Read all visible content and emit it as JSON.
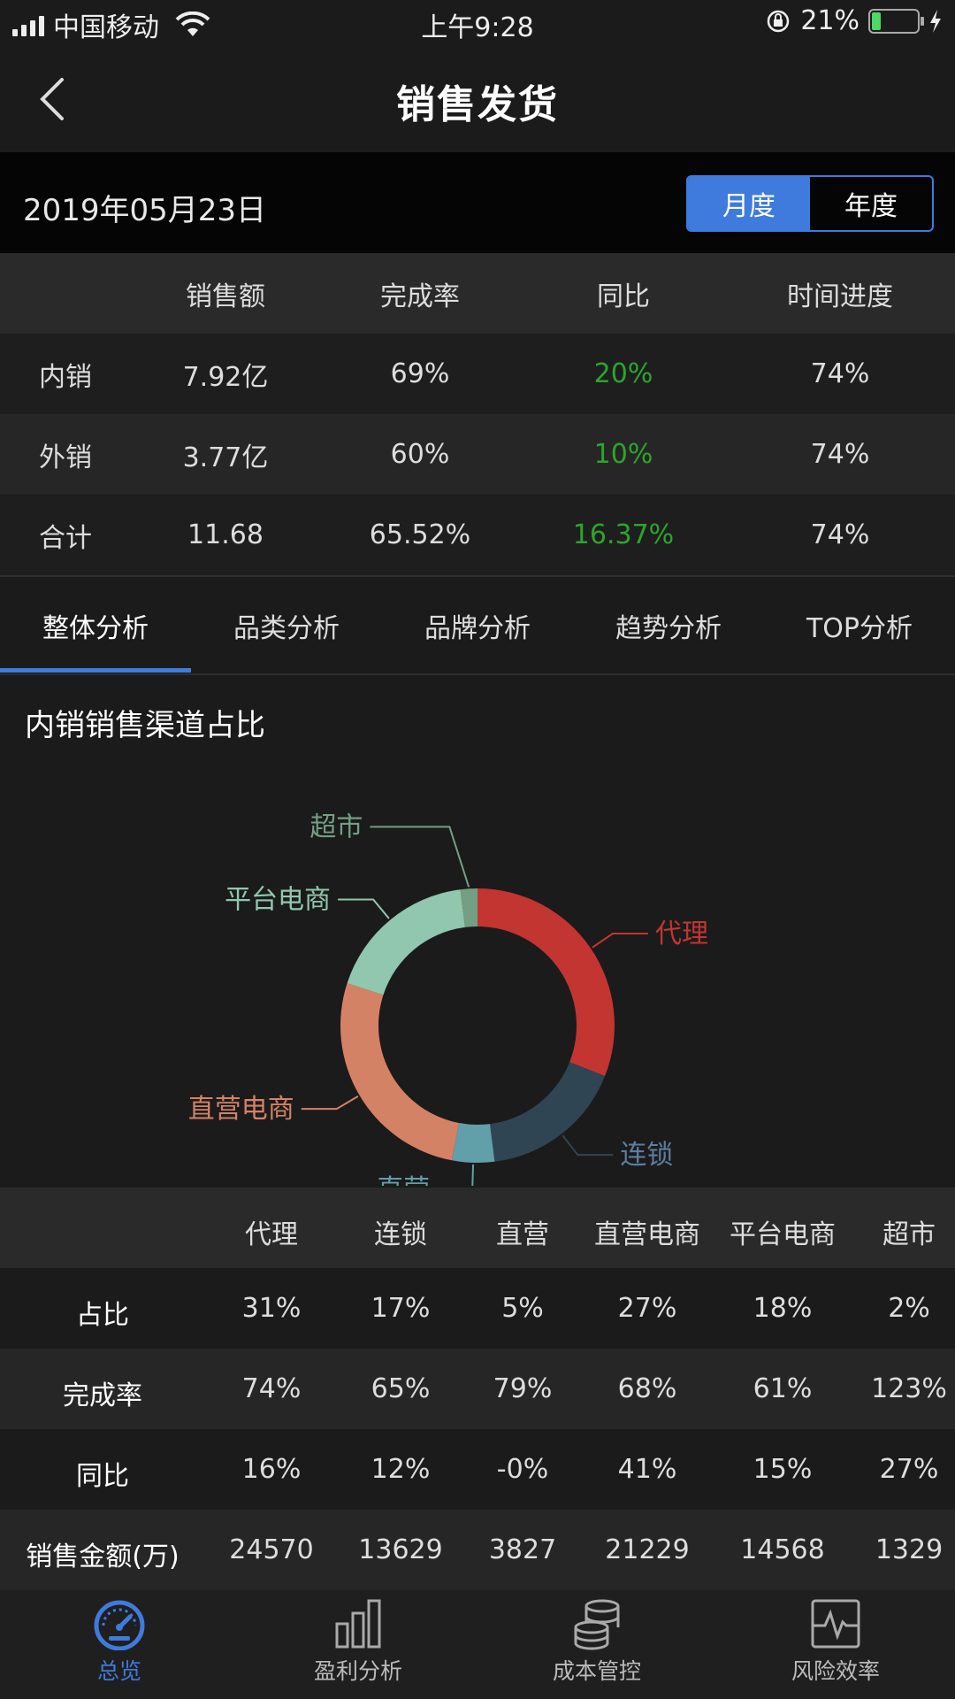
{
  "status": {
    "carrier": "中国移动",
    "time": "上午9:28",
    "battery_pct": "21%",
    "battery_level": 0.21
  },
  "nav": {
    "title": "销售发货",
    "back_icon": "chevron-left-icon"
  },
  "date": "2019年05月23日",
  "period_toggle": {
    "month": "月度",
    "year": "年度",
    "selected": "月度",
    "accent": "#3e7bdc"
  },
  "summary": {
    "headers": [
      "销售额",
      "完成率",
      "同比",
      "时间进度"
    ],
    "rows": [
      {
        "label": "内销",
        "sales": "7.92亿",
        "rate": "69%",
        "yoy": "20%",
        "time": "74%"
      },
      {
        "label": "外销",
        "sales": "3.77亿",
        "rate": "60%",
        "yoy": "10%",
        "time": "74%"
      },
      {
        "label": "合计",
        "sales": "11.68",
        "rate": "65.52%",
        "yoy": "16.37%",
        "time": "74%"
      }
    ],
    "yoy_color": "#2ca52c"
  },
  "tabs": [
    "整体分析",
    "品类分析",
    "品牌分析",
    "趋势分析",
    "TOP分析"
  ],
  "active_tab": "整体分析",
  "chart_section_title": "内销销售渠道占比",
  "chart_data": {
    "type": "pie",
    "donut": true,
    "categories": [
      "代理",
      "连锁",
      "直营",
      "直营电商",
      "平台电商",
      "超市"
    ],
    "values": [
      31,
      17,
      5,
      27,
      18,
      2
    ],
    "colors": [
      "#c23531",
      "#2f4554",
      "#61a0a8",
      "#d48265",
      "#91c7ae",
      "#749f83"
    ],
    "start_angle_deg": 90,
    "direction": "clockwise"
  },
  "channel_table": {
    "headers": [
      "代理",
      "连锁",
      "直营",
      "直营电商",
      "平台电商",
      "超市"
    ],
    "rows": [
      {
        "label": "占比",
        "values": [
          "31%",
          "17%",
          "5%",
          "27%",
          "18%",
          "2%"
        ]
      },
      {
        "label": "完成率",
        "values": [
          "74%",
          "65%",
          "79%",
          "68%",
          "61%",
          "123%"
        ]
      },
      {
        "label": "同比",
        "values": [
          "16%",
          "12%",
          "-0%",
          "41%",
          "15%",
          "27%"
        ]
      },
      {
        "label": "销售金额(万)",
        "values": [
          "24570",
          "13629",
          "3827",
          "21229",
          "14568",
          "1329"
        ]
      }
    ]
  },
  "bottom_nav": [
    {
      "label": "总览",
      "icon": "speedometer-icon",
      "active": true
    },
    {
      "label": "盈利分析",
      "icon": "bar-chart-icon",
      "active": false
    },
    {
      "label": "成本管控",
      "icon": "coin-stack-icon",
      "active": false
    },
    {
      "label": "风险效率",
      "icon": "pulse-monitor-icon",
      "active": false
    }
  ]
}
